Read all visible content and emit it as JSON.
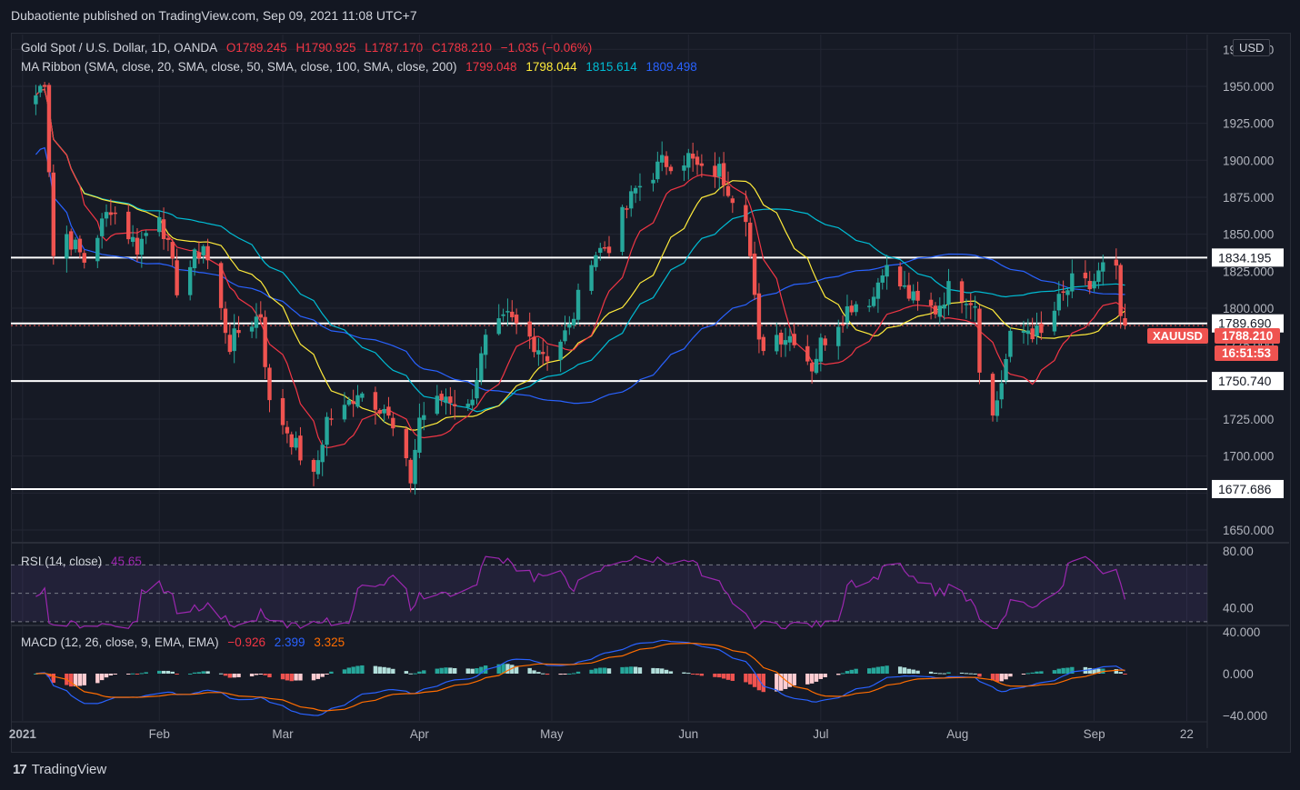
{
  "header": {
    "published_line": "Dubaotiente published on TradingView.com, Sep 09, 2021 11:08 UTC+7"
  },
  "legend": {
    "symbol": "Gold Spot / U.S. Dollar, 1D, OANDA",
    "open": "O1789.245",
    "high": "H1790.925",
    "low": "L1787.170",
    "close": "C1788.210",
    "change": "−1.035 (−0.06%)",
    "ma_label": "MA Ribbon (SMA, close, 20, SMA, close, 50, SMA, close, 100, SMA, close, 200)",
    "ma20": "1799.048",
    "ma50": "1798.044",
    "ma100": "1815.614",
    "ma200": "1809.498",
    "rsi_label": "RSI (14, close)",
    "rsi_value": "45.65",
    "macd_label": "MACD (12, 26, close, 9, EMA, EMA)",
    "macd_hist": "−0.926",
    "macd_line": "2.399",
    "macd_signal": "3.325"
  },
  "currency_button": "USD",
  "price_badges": {
    "symbol": "XAUUSD",
    "last_price": "1788.210",
    "countdown": "16:51:53"
  },
  "colors": {
    "background": "#161a25",
    "up": "#26a69a",
    "down": "#ef5350",
    "ma20": "#f23645",
    "ma50": "#ffeb3b",
    "ma100": "#00bcd4",
    "ma200": "#2962ff",
    "rsi": "#9c27b0",
    "macd": "#2962ff",
    "signal": "#ff6d00"
  },
  "footer": {
    "brand": "TradingView"
  },
  "chart_data": [
    {
      "type": "candlestick",
      "title": "Gold Spot / U.S. Dollar, 1D, OANDA",
      "x_labels": [
        "2021",
        "Feb",
        "Mar",
        "Apr",
        "May",
        "Jun",
        "Jul",
        "Aug",
        "Sep",
        "22"
      ],
      "x_label_dates": [
        "2021-01-01",
        "2021-02-01",
        "2021-03-01",
        "2021-04-01",
        "2021-05-01",
        "2021-06-01",
        "2021-07-01",
        "2021-08-01",
        "2021-09-01",
        "2021-09-22"
      ],
      "y_ticks": [
        1650,
        1675,
        1700,
        1725,
        1750,
        1775,
        1800,
        1825,
        1850,
        1875,
        1900,
        1925,
        1950,
        1975
      ],
      "ylim": [
        1642,
        1985
      ],
      "horizontal_levels": [
        1834.195,
        1789.69,
        1750.74,
        1677.686
      ],
      "last_price": 1788.21,
      "anchors": [
        [
          "2021-01-04",
          1944
        ],
        [
          "2021-01-06",
          1955
        ],
        [
          "2021-01-08",
          1836
        ],
        [
          "2021-01-11",
          1850
        ],
        [
          "2021-01-15",
          1832
        ],
        [
          "2021-01-21",
          1869
        ],
        [
          "2021-01-27",
          1841
        ],
        [
          "2021-02-01",
          1866
        ],
        [
          "2021-02-05",
          1814
        ],
        [
          "2021-02-11",
          1843
        ],
        [
          "2021-02-17",
          1775
        ],
        [
          "2021-02-19",
          1784
        ],
        [
          "2021-02-24",
          1796
        ],
        [
          "2021-02-26",
          1734
        ],
        [
          "2021-03-01",
          1723
        ],
        [
          "2021-03-08",
          1684
        ],
        [
          "2021-03-11",
          1725
        ],
        [
          "2021-03-15",
          1731
        ],
        [
          "2021-03-18",
          1745
        ],
        [
          "2021-03-24",
          1733
        ],
        [
          "2021-03-30",
          1684
        ],
        [
          "2021-04-01",
          1726
        ],
        [
          "2021-04-07",
          1741
        ],
        [
          "2021-04-12",
          1732
        ],
        [
          "2021-04-16",
          1777
        ],
        [
          "2021-04-21",
          1793
        ],
        [
          "2021-04-26",
          1780
        ],
        [
          "2021-04-30",
          1768
        ],
        [
          "2021-05-05",
          1786
        ],
        [
          "2021-05-10",
          1836
        ],
        [
          "2021-05-14",
          1843
        ],
        [
          "2021-05-20",
          1880
        ],
        [
          "2021-05-26",
          1898
        ],
        [
          "2021-06-01",
          1902
        ],
        [
          "2021-06-04",
          1891
        ],
        [
          "2021-06-08",
          1893
        ],
        [
          "2021-06-11",
          1877
        ],
        [
          "2021-06-14",
          1865
        ],
        [
          "2021-06-17",
          1774
        ],
        [
          "2021-06-21",
          1782
        ],
        [
          "2021-06-25",
          1781
        ],
        [
          "2021-06-29",
          1761
        ],
        [
          "2021-07-01",
          1776
        ],
        [
          "2021-07-06",
          1796
        ],
        [
          "2021-07-08",
          1803
        ],
        [
          "2021-07-13",
          1808
        ],
        [
          "2021-07-15",
          1829
        ],
        [
          "2021-07-20",
          1812
        ],
        [
          "2021-07-23",
          1802
        ],
        [
          "2021-07-27",
          1799
        ],
        [
          "2021-07-30",
          1813
        ],
        [
          "2021-08-03",
          1809
        ],
        [
          "2021-08-05",
          1804
        ],
        [
          "2021-08-06",
          1763
        ],
        [
          "2021-08-09",
          1726
        ],
        [
          "2021-08-11",
          1751
        ],
        [
          "2021-08-13",
          1779
        ],
        [
          "2021-08-17",
          1786
        ],
        [
          "2021-08-20",
          1781
        ],
        [
          "2021-08-24",
          1804
        ],
        [
          "2021-08-27",
          1817
        ],
        [
          "2021-08-31",
          1814
        ],
        [
          "2021-09-03",
          1827
        ],
        [
          "2021-09-06",
          1823
        ],
        [
          "2021-09-07",
          1794
        ],
        [
          "2021-09-08",
          1788.21
        ]
      ],
      "ma_levels_at_end": {
        "ma20": 1799.048,
        "ma50": 1798.044,
        "ma100": 1815.614,
        "ma200": 1809.498
      }
    },
    {
      "type": "line",
      "title": "RSI (14, close)",
      "y_ticks": [
        40,
        80
      ],
      "ylim": [
        28,
        85
      ],
      "bands": [
        70,
        50,
        30
      ],
      "last_value": 45.65
    },
    {
      "type": "bar",
      "title": "MACD (12, 26, close, 9, EMA, EMA)",
      "y_ticks": [
        -40,
        0,
        40
      ],
      "ylim": [
        -45,
        45
      ],
      "macd_line": 2.399,
      "signal_line": 3.325,
      "histogram": -0.926
    }
  ]
}
